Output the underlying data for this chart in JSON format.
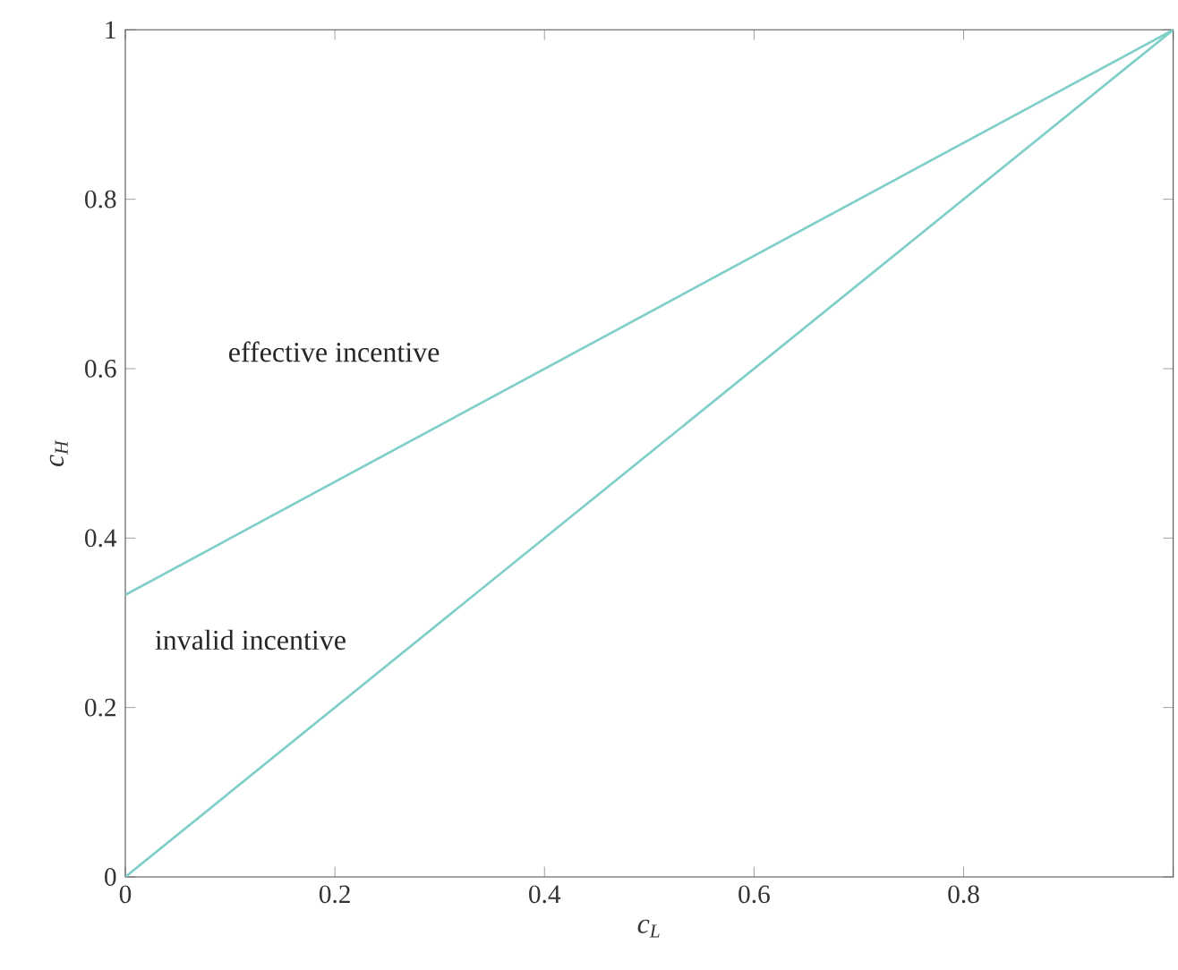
{
  "chart_data": {
    "type": "line",
    "xlabel": "c$_{L}$",
    "ylabel": "c$_{H}$",
    "annotations": [
      "effective incentive",
      "invalid incentive"
    ],
    "x": [
      0,
      1
    ],
    "series": [
      {
        "color": "#7fcfc8",
        "values": [
          0.333,
          1
        ]
      },
      {
        "color": "#7fcfc8",
        "values": [
          0,
          1
        ]
      }
    ],
    "xlim": [
      0,
      1
    ],
    "ylim": [
      0,
      1
    ],
    "xticks": [
      0,
      0.2,
      0.4,
      0.6,
      0.8,
      {
        "value": 1,
        "label": null
      }
    ],
    "yticks": [
      0,
      0.2,
      0.4,
      0.6,
      0.8,
      1
    ],
    "grid": false,
    "marker": "none",
    "line_style": "solid"
  }
}
